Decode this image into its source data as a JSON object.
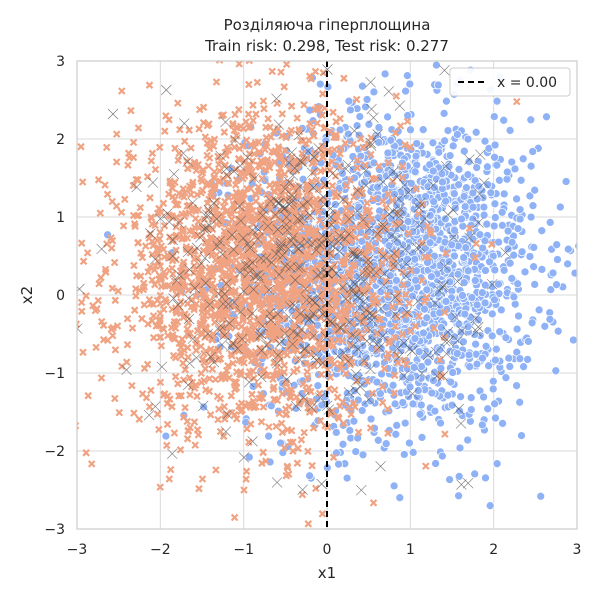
{
  "chart_data": {
    "type": "scatter",
    "title_line1": "Розділяюча гіперплощина",
    "title_line2": "Train risk: 0.298, Test risk: 0.277",
    "xlabel": "x1",
    "ylabel": "x2",
    "xlim": [
      -3,
      3
    ],
    "ylim": [
      -3,
      3
    ],
    "xticks": [
      "−3",
      "−2",
      "−1",
      "0",
      "1",
      "2",
      "3"
    ],
    "yticks": [
      "−3",
      "−2",
      "−1",
      "0",
      "1",
      "2",
      "3"
    ],
    "grid": true,
    "legend_position": "top-right",
    "hyperplane": {
      "label": "x = 0.00",
      "x": 0.0,
      "style": "dashed",
      "color": "#000000"
    },
    "point_clouds": [
      {
        "marker": "circle",
        "color": "#8fb2f7",
        "center": [
          0.8,
          0.3
        ],
        "spread": [
          0.85,
          1.0
        ],
        "count": 2200
      },
      {
        "marker": "x",
        "color": "#f0a382",
        "center": [
          -0.8,
          0.3
        ],
        "spread": [
          0.85,
          1.0
        ],
        "count": 2200
      },
      {
        "marker": "x-thin",
        "color": "#555555",
        "center": [
          -0.2,
          0.3
        ],
        "spread": [
          0.95,
          1.0
        ],
        "count": 420
      }
    ]
  }
}
